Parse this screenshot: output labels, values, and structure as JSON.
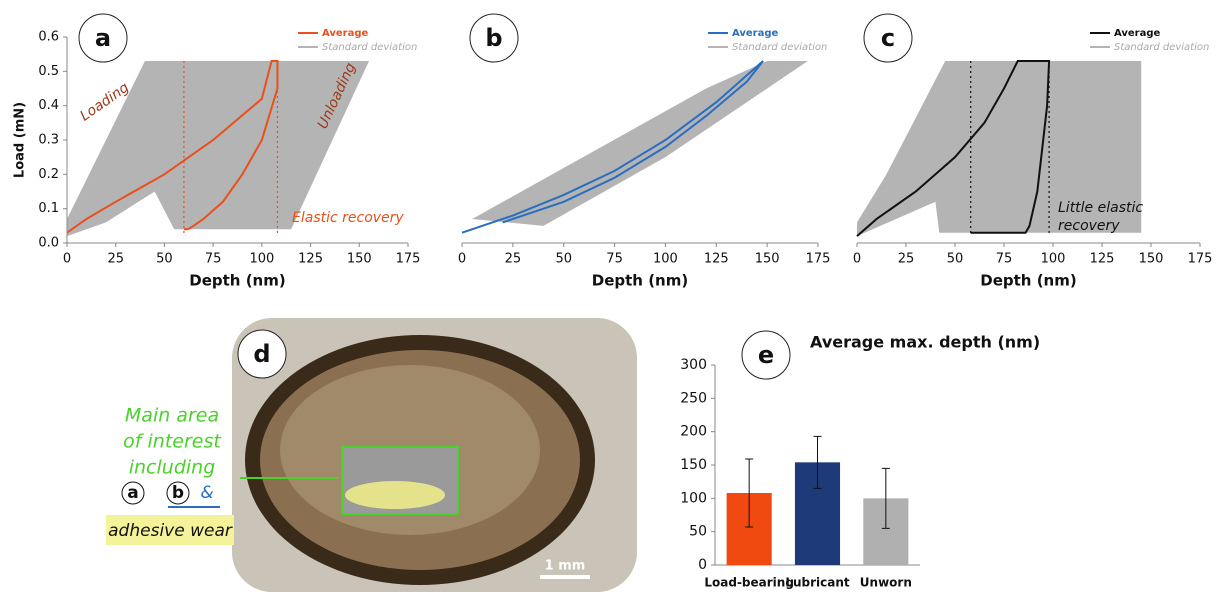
{
  "chart_data": [
    {
      "type": "line",
      "panel_label": "a",
      "xlabel": "Depth (nm)",
      "ylabel": "Load (mN)",
      "xlim": [
        0,
        175
      ],
      "xticks": [
        0,
        25,
        50,
        75,
        100,
        125,
        150,
        175
      ],
      "ylim": [
        0,
        0.6
      ],
      "yticks": [
        {
          "value": 0,
          "label": "0.0"
        },
        0.1,
        0.2,
        0.3,
        0.4,
        0.5,
        0.6
      ],
      "legend": "upper right",
      "series": [
        {
          "name": "Average",
          "color": "#e8501c",
          "x": [
            0,
            10,
            25,
            50,
            75,
            100,
            105,
            108,
            108,
            100,
            90,
            80,
            70,
            65,
            62,
            60
          ],
          "values": [
            0.03,
            0.07,
            0.12,
            0.2,
            0.3,
            0.42,
            0.53,
            0.53,
            0.45,
            0.3,
            0.2,
            0.12,
            0.07,
            0.05,
            0.04,
            0.04
          ]
        },
        {
          "name": "Standard deviation",
          "color": "#b4b4b4",
          "area": true,
          "x": [
            0,
            40,
            155,
            115,
            55,
            45,
            20,
            0
          ],
          "values": [
            0.07,
            0.53,
            0.53,
            0.04,
            0.04,
            0.15,
            0.06,
            0.02
          ]
        }
      ],
      "annotations": [
        "Loading",
        "Unloading",
        "Elastic recovery"
      ]
    },
    {
      "type": "line",
      "panel_label": "b",
      "xlabel": "Depth (nm)",
      "xlim": [
        0,
        175
      ],
      "xticks": [
        0,
        25,
        50,
        75,
        100,
        125,
        150,
        175
      ],
      "ylim": [
        0,
        0.6
      ],
      "legend": "upper right",
      "series": [
        {
          "name": "Average",
          "color": "#2a6ebf",
          "x": [
            0,
            25,
            50,
            75,
            100,
            125,
            148,
            140,
            120,
            100,
            75,
            50,
            30,
            20
          ],
          "values": [
            0.03,
            0.08,
            0.14,
            0.21,
            0.3,
            0.41,
            0.53,
            0.47,
            0.37,
            0.28,
            0.19,
            0.12,
            0.08,
            0.06
          ]
        },
        {
          "name": "Standard deviation",
          "color": "#b4b4b4",
          "area": true,
          "x": [
            5,
            120,
            150,
            170,
            100,
            40,
            5
          ],
          "values": [
            0.07,
            0.45,
            0.53,
            0.53,
            0.25,
            0.05,
            0.07
          ]
        }
      ],
      "annotations": []
    },
    {
      "type": "line",
      "panel_label": "c",
      "xlabel": "Depth (nm)",
      "xlim": [
        0,
        175
      ],
      "xticks": [
        0,
        25,
        50,
        75,
        100,
        125,
        150,
        175
      ],
      "ylim": [
        0,
        0.6
      ],
      "legend": "upper right",
      "series": [
        {
          "name": "Average",
          "color": "#111111",
          "x": [
            0,
            10,
            30,
            50,
            65,
            75,
            82,
            98,
            97,
            95,
            92,
            88,
            86,
            58
          ],
          "values": [
            0.02,
            0.07,
            0.15,
            0.25,
            0.35,
            0.45,
            0.53,
            0.53,
            0.4,
            0.3,
            0.15,
            0.05,
            0.03,
            0.03
          ]
        },
        {
          "name": "Standard deviation",
          "color": "#b4b4b4",
          "area": true,
          "x": [
            0,
            15,
            45,
            145,
            145,
            42,
            40,
            0
          ],
          "values": [
            0.06,
            0.2,
            0.53,
            0.53,
            0.03,
            0.03,
            0.12,
            0.02
          ]
        }
      ],
      "annotations": [
        "Little elastic",
        "recovery"
      ]
    },
    {
      "type": "bar",
      "panel_label": "e",
      "title": "Average max. depth (nm)",
      "categories": [
        "Load-bearing",
        "Lubricant",
        "Unworn"
      ],
      "values": [
        108,
        154,
        100
      ],
      "errors": [
        51,
        39,
        45
      ],
      "colors": [
        "#f04a10",
        "#1f3a78",
        "#b0b0b0"
      ],
      "ylim": [
        0,
        300
      ],
      "yticks": [
        0,
        50,
        100,
        150,
        200,
        250,
        300
      ]
    }
  ],
  "panel_d": {
    "label": "d",
    "callout": [
      "Main area",
      "of interest",
      "including"
    ],
    "refs": [
      "a",
      "b",
      "&"
    ],
    "wear": "adhesive wear",
    "scale": "1 mm"
  }
}
